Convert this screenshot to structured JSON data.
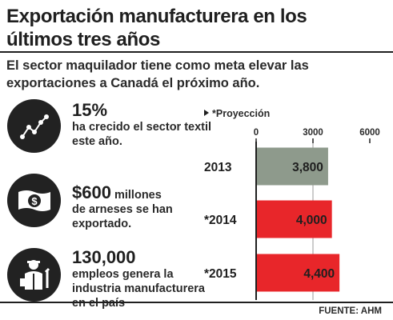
{
  "header": {
    "title": "Exportación manufacturera en los últimos tres años",
    "subtitle": "El sector maquilador tiene como meta elevar las exportaciones a Canadá el próximo año."
  },
  "facts": [
    {
      "icon": "growth-chart-icon",
      "big": "15%",
      "text": "ha crecido el sector textil este año."
    },
    {
      "icon": "money-bill-icon",
      "big": "$600",
      "inline": " millones",
      "text": "de arneses se han exportado."
    },
    {
      "icon": "worker-icon",
      "big": "130,000",
      "text": "empleos genera la industria manufacturera en el país"
    }
  ],
  "legend": {
    "label": "*Proyección"
  },
  "source": "FUENTE: AHM",
  "colors": {
    "actual": "#8e9a8c",
    "projection": "#e8262a",
    "axis": "#1f1f1f",
    "gridline": "#9a9a9a",
    "icon_bg": "#222222"
  },
  "chart_data": {
    "type": "bar",
    "orientation": "horizontal",
    "categories": [
      "2013",
      "*2014",
      "*2015"
    ],
    "values": [
      3800,
      4000,
      4400
    ],
    "value_labels": [
      "3,800",
      "4,000",
      "4,400"
    ],
    "projection": [
      false,
      true,
      true
    ],
    "xlim": [
      0,
      6000
    ],
    "xticks": [
      0,
      3000,
      6000
    ],
    "grid": true
  }
}
